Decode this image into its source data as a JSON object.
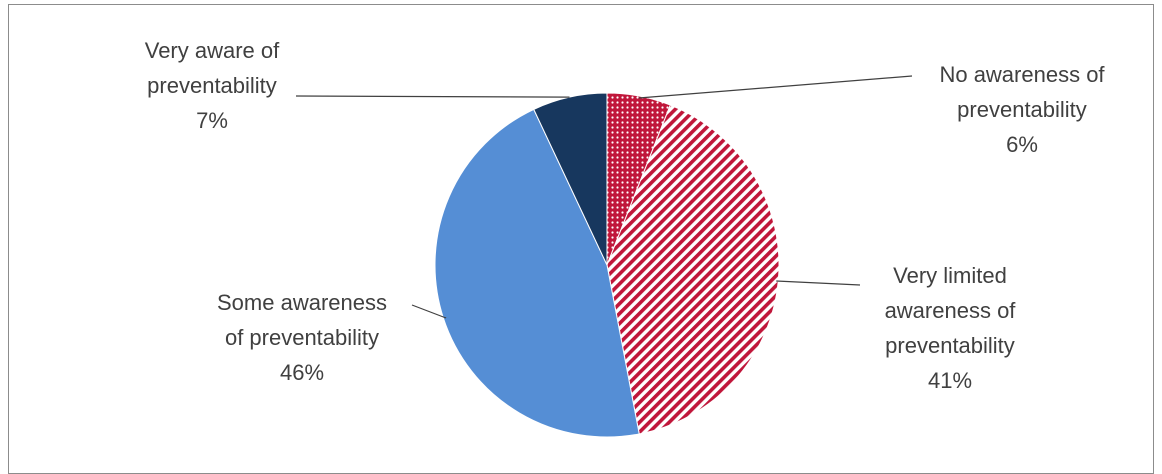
{
  "chart_data": {
    "type": "pie",
    "title": "",
    "slices": [
      {
        "label_lines": [
          "No awareness of",
          "preventability"
        ],
        "value": 6,
        "value_label": "6%",
        "color": "#c0163a",
        "pattern": "dots"
      },
      {
        "label_lines": [
          "Very limited",
          "awareness of",
          "preventability"
        ],
        "value": 41,
        "value_label": "41%",
        "color": "#c0163a",
        "pattern": "stripes"
      },
      {
        "label_lines": [
          "Some awareness",
          "of preventability"
        ],
        "value": 46,
        "value_label": "46%",
        "color": "#558ed5",
        "pattern": "solid"
      },
      {
        "label_lines": [
          "Very aware of",
          "preventability"
        ],
        "value": 7,
        "value_label": "7%",
        "color": "#17375e",
        "pattern": "solid"
      }
    ],
    "legend": "none",
    "start_angle": "12 o'clock, clockwise"
  }
}
